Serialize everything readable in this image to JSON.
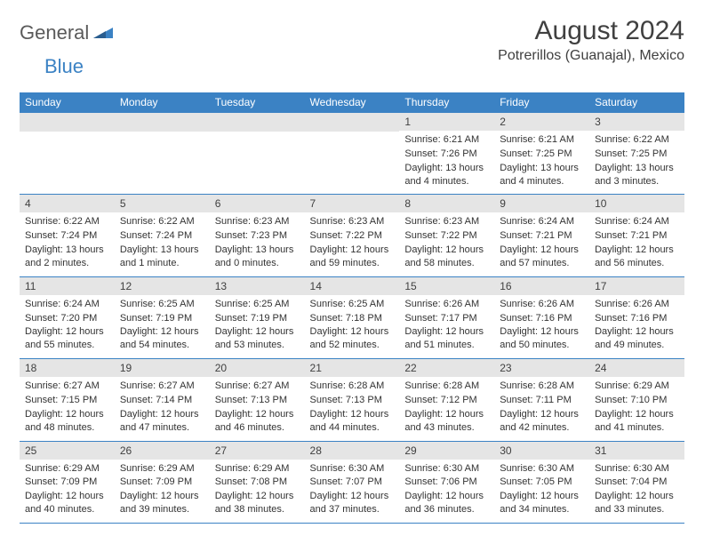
{
  "logo": {
    "text1": "General",
    "text2": "Blue"
  },
  "title": "August 2024",
  "location": "Potrerillos (Guanajal), Mexico",
  "colors": {
    "header_bg": "#3b82c4",
    "header_text": "#ffffff",
    "daynum_bg": "#e5e5e5",
    "text": "#333333",
    "border": "#3b82c4"
  },
  "day_names": [
    "Sunday",
    "Monday",
    "Tuesday",
    "Wednesday",
    "Thursday",
    "Friday",
    "Saturday"
  ],
  "weeks": [
    [
      null,
      null,
      null,
      null,
      {
        "n": "1",
        "sr": "6:21 AM",
        "ss": "7:26 PM",
        "dl": "13 hours and 4 minutes."
      },
      {
        "n": "2",
        "sr": "6:21 AM",
        "ss": "7:25 PM",
        "dl": "13 hours and 4 minutes."
      },
      {
        "n": "3",
        "sr": "6:22 AM",
        "ss": "7:25 PM",
        "dl": "13 hours and 3 minutes."
      }
    ],
    [
      {
        "n": "4",
        "sr": "6:22 AM",
        "ss": "7:24 PM",
        "dl": "13 hours and 2 minutes."
      },
      {
        "n": "5",
        "sr": "6:22 AM",
        "ss": "7:24 PM",
        "dl": "13 hours and 1 minute."
      },
      {
        "n": "6",
        "sr": "6:23 AM",
        "ss": "7:23 PM",
        "dl": "13 hours and 0 minutes."
      },
      {
        "n": "7",
        "sr": "6:23 AM",
        "ss": "7:22 PM",
        "dl": "12 hours and 59 minutes."
      },
      {
        "n": "8",
        "sr": "6:23 AM",
        "ss": "7:22 PM",
        "dl": "12 hours and 58 minutes."
      },
      {
        "n": "9",
        "sr": "6:24 AM",
        "ss": "7:21 PM",
        "dl": "12 hours and 57 minutes."
      },
      {
        "n": "10",
        "sr": "6:24 AM",
        "ss": "7:21 PM",
        "dl": "12 hours and 56 minutes."
      }
    ],
    [
      {
        "n": "11",
        "sr": "6:24 AM",
        "ss": "7:20 PM",
        "dl": "12 hours and 55 minutes."
      },
      {
        "n": "12",
        "sr": "6:25 AM",
        "ss": "7:19 PM",
        "dl": "12 hours and 54 minutes."
      },
      {
        "n": "13",
        "sr": "6:25 AM",
        "ss": "7:19 PM",
        "dl": "12 hours and 53 minutes."
      },
      {
        "n": "14",
        "sr": "6:25 AM",
        "ss": "7:18 PM",
        "dl": "12 hours and 52 minutes."
      },
      {
        "n": "15",
        "sr": "6:26 AM",
        "ss": "7:17 PM",
        "dl": "12 hours and 51 minutes."
      },
      {
        "n": "16",
        "sr": "6:26 AM",
        "ss": "7:16 PM",
        "dl": "12 hours and 50 minutes."
      },
      {
        "n": "17",
        "sr": "6:26 AM",
        "ss": "7:16 PM",
        "dl": "12 hours and 49 minutes."
      }
    ],
    [
      {
        "n": "18",
        "sr": "6:27 AM",
        "ss": "7:15 PM",
        "dl": "12 hours and 48 minutes."
      },
      {
        "n": "19",
        "sr": "6:27 AM",
        "ss": "7:14 PM",
        "dl": "12 hours and 47 minutes."
      },
      {
        "n": "20",
        "sr": "6:27 AM",
        "ss": "7:13 PM",
        "dl": "12 hours and 46 minutes."
      },
      {
        "n": "21",
        "sr": "6:28 AM",
        "ss": "7:13 PM",
        "dl": "12 hours and 44 minutes."
      },
      {
        "n": "22",
        "sr": "6:28 AM",
        "ss": "7:12 PM",
        "dl": "12 hours and 43 minutes."
      },
      {
        "n": "23",
        "sr": "6:28 AM",
        "ss": "7:11 PM",
        "dl": "12 hours and 42 minutes."
      },
      {
        "n": "24",
        "sr": "6:29 AM",
        "ss": "7:10 PM",
        "dl": "12 hours and 41 minutes."
      }
    ],
    [
      {
        "n": "25",
        "sr": "6:29 AM",
        "ss": "7:09 PM",
        "dl": "12 hours and 40 minutes."
      },
      {
        "n": "26",
        "sr": "6:29 AM",
        "ss": "7:09 PM",
        "dl": "12 hours and 39 minutes."
      },
      {
        "n": "27",
        "sr": "6:29 AM",
        "ss": "7:08 PM",
        "dl": "12 hours and 38 minutes."
      },
      {
        "n": "28",
        "sr": "6:30 AM",
        "ss": "7:07 PM",
        "dl": "12 hours and 37 minutes."
      },
      {
        "n": "29",
        "sr": "6:30 AM",
        "ss": "7:06 PM",
        "dl": "12 hours and 36 minutes."
      },
      {
        "n": "30",
        "sr": "6:30 AM",
        "ss": "7:05 PM",
        "dl": "12 hours and 34 minutes."
      },
      {
        "n": "31",
        "sr": "6:30 AM",
        "ss": "7:04 PM",
        "dl": "12 hours and 33 minutes."
      }
    ]
  ],
  "labels": {
    "sunrise": "Sunrise: ",
    "sunset": "Sunset: ",
    "daylight": "Daylight: "
  }
}
